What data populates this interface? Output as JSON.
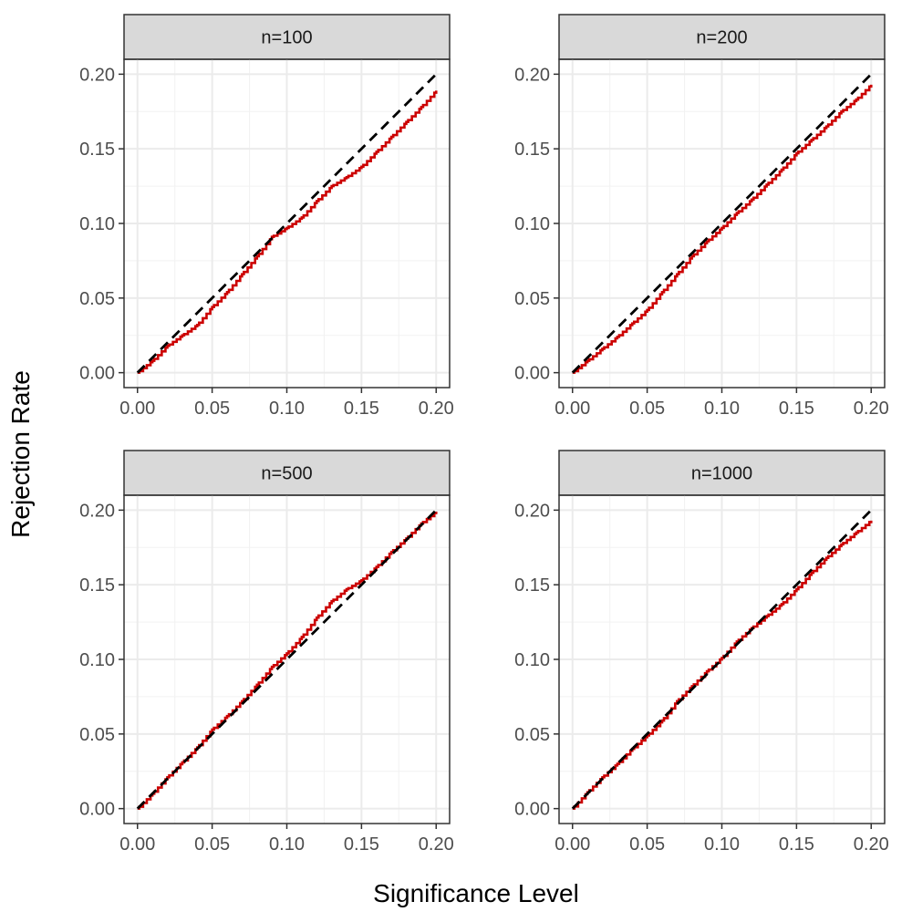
{
  "chart_data": {
    "type": "line",
    "xlabel": "Significance Level",
    "ylabel": "Rejection Rate",
    "xlim": [
      -0.009,
      0.209
    ],
    "ylim": [
      -0.01,
      0.21
    ],
    "x_ticks": [
      "0.00",
      "0.05",
      "0.10",
      "0.15",
      "0.20"
    ],
    "y_ticks": [
      "0.00",
      "0.05",
      "0.10",
      "0.15",
      "0.20"
    ],
    "x_tick_values": [
      0,
      0.05,
      0.1,
      0.15,
      0.2
    ],
    "y_tick_values": [
      0,
      0.05,
      0.1,
      0.15,
      0.2
    ],
    "colors": {
      "empirical": "#cc0000",
      "reference": "#000000"
    },
    "reference_line": {
      "name": "nominal",
      "x": [
        0,
        0.2
      ],
      "y": [
        0,
        0.2
      ],
      "style": "dashed"
    },
    "panels": [
      {
        "title": "n=100",
        "series": [
          {
            "name": "empirical",
            "x": [
              0.0,
              0.01,
              0.02,
              0.03,
              0.04,
              0.05,
              0.06,
              0.07,
              0.08,
              0.09,
              0.1,
              0.11,
              0.12,
              0.13,
              0.14,
              0.15,
              0.16,
              0.17,
              0.18,
              0.19,
              0.2
            ],
            "y": [
              0.0,
              0.008,
              0.018,
              0.025,
              0.032,
              0.044,
              0.054,
              0.066,
              0.078,
              0.091,
              0.097,
              0.104,
              0.115,
              0.125,
              0.131,
              0.138,
              0.148,
              0.158,
              0.168,
              0.178,
              0.189
            ]
          }
        ]
      },
      {
        "title": "n=200",
        "series": [
          {
            "name": "empirical",
            "x": [
              0.0,
              0.01,
              0.02,
              0.03,
              0.04,
              0.05,
              0.06,
              0.07,
              0.08,
              0.09,
              0.1,
              0.11,
              0.12,
              0.13,
              0.14,
              0.15,
              0.16,
              0.17,
              0.18,
              0.19,
              0.2
            ],
            "y": [
              0.0,
              0.008,
              0.016,
              0.024,
              0.033,
              0.042,
              0.054,
              0.066,
              0.078,
              0.088,
              0.097,
              0.107,
              0.116,
              0.126,
              0.136,
              0.147,
              0.156,
              0.165,
              0.175,
              0.183,
              0.193
            ]
          }
        ]
      },
      {
        "title": "n=500",
        "series": [
          {
            "name": "empirical",
            "x": [
              0.0,
              0.01,
              0.02,
              0.03,
              0.04,
              0.05,
              0.06,
              0.07,
              0.08,
              0.09,
              0.1,
              0.11,
              0.12,
              0.13,
              0.14,
              0.15,
              0.16,
              0.17,
              0.18,
              0.19,
              0.2
            ],
            "y": [
              0.0,
              0.01,
              0.021,
              0.031,
              0.041,
              0.053,
              0.062,
              0.072,
              0.083,
              0.095,
              0.104,
              0.115,
              0.128,
              0.139,
              0.147,
              0.153,
              0.162,
              0.172,
              0.181,
              0.191,
              0.199
            ]
          }
        ]
      },
      {
        "title": "n=1000",
        "series": [
          {
            "name": "empirical",
            "x": [
              0.0,
              0.01,
              0.02,
              0.03,
              0.04,
              0.05,
              0.06,
              0.07,
              0.08,
              0.09,
              0.1,
              0.11,
              0.12,
              0.13,
              0.14,
              0.15,
              0.16,
              0.17,
              0.18,
              0.19,
              0.2
            ],
            "y": [
              0.0,
              0.011,
              0.021,
              0.03,
              0.04,
              0.049,
              0.059,
              0.072,
              0.082,
              0.092,
              0.101,
              0.112,
              0.121,
              0.129,
              0.137,
              0.147,
              0.158,
              0.168,
              0.177,
              0.185,
              0.193
            ]
          }
        ]
      }
    ]
  }
}
